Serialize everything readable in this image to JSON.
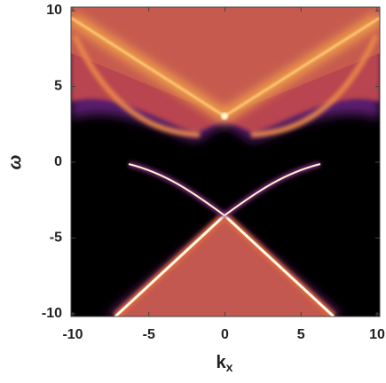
{
  "chart_data": {
    "type": "density",
    "xlabel": {
      "base": "k",
      "sub": "x"
    },
    "ylabel": "ω",
    "xlim": [
      -10,
      10
    ],
    "ylim": [
      -10,
      10
    ],
    "xticks": [
      -10,
      -5,
      0,
      5,
      10
    ],
    "yticks": [
      -10,
      -5,
      0,
      5,
      10
    ]
  }
}
